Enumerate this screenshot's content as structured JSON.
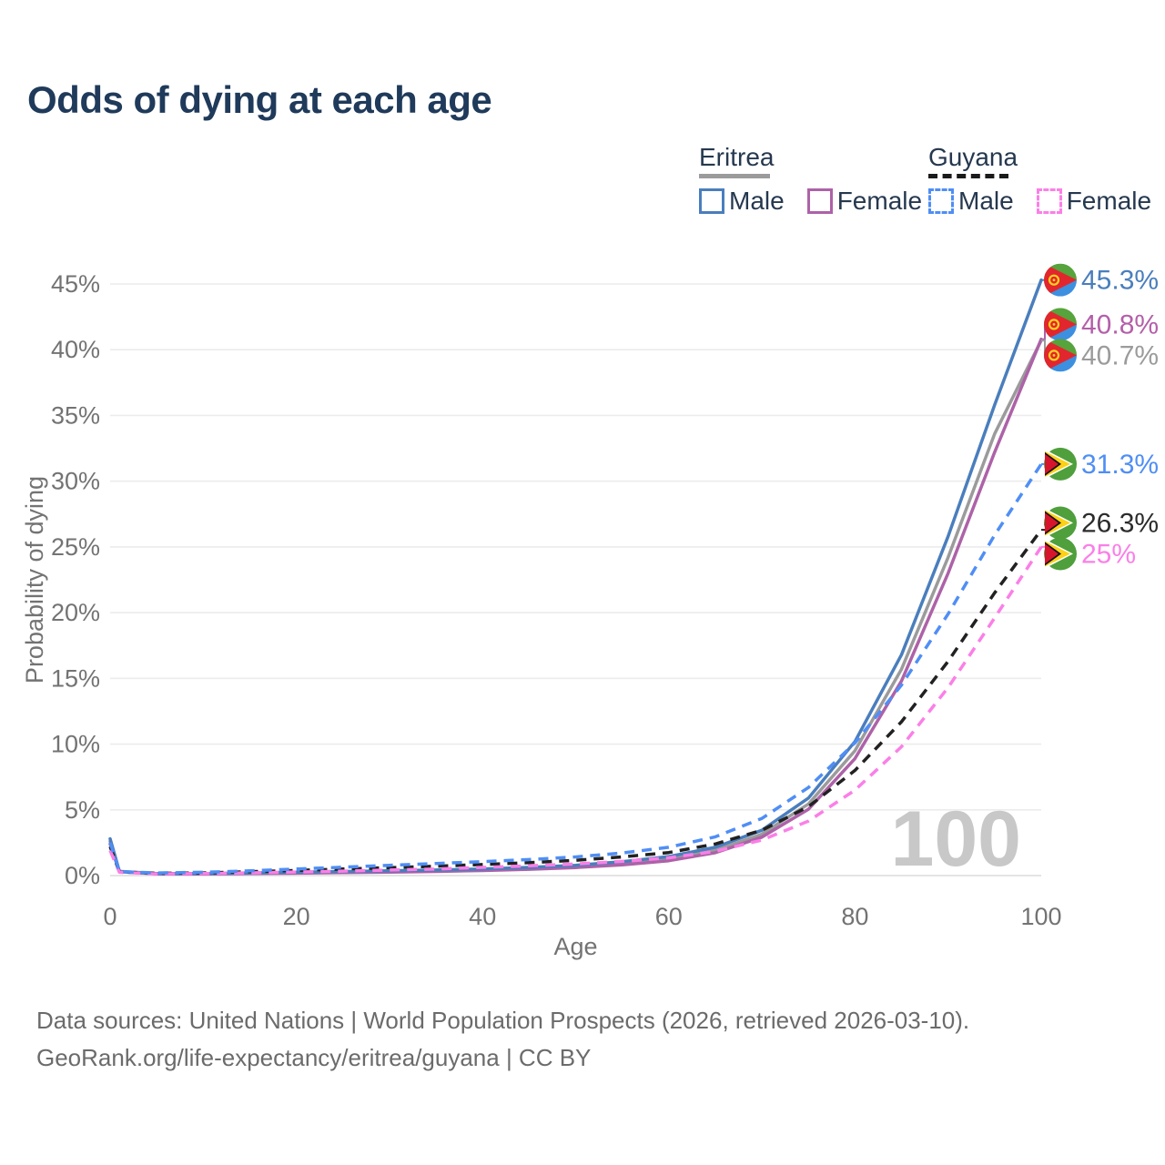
{
  "title": "Odds of dying at each age",
  "legend": {
    "groups": [
      {
        "label": "Eritrea",
        "underline_style": "solid",
        "underline_color": "#9b9b9b",
        "underline_width": 78,
        "items": [
          {
            "label": "Male",
            "color": "#4a7ebd",
            "dashed": false
          },
          {
            "label": "Female",
            "color": "#ad62a8",
            "dashed": false
          }
        ]
      },
      {
        "label": "Guyana",
        "underline_style": "dashed",
        "underline_color": "#1a1a1a",
        "underline_width": 88,
        "items": [
          {
            "label": "Male",
            "color": "#4f8ef5",
            "dashed": true
          },
          {
            "label": "Female",
            "color": "#fb7fe7",
            "dashed": true
          }
        ]
      }
    ]
  },
  "chart_data": {
    "type": "line",
    "title": "Odds of dying at each age",
    "xlabel": "Age",
    "ylabel": "Probability of dying",
    "xlim": [
      0,
      100
    ],
    "ylim_pct": [
      0,
      45
    ],
    "grid": true,
    "x_ticks": [
      0,
      20,
      40,
      60,
      80,
      100
    ],
    "y_ticks_pct": [
      0,
      5,
      10,
      15,
      20,
      25,
      30,
      35,
      40,
      45
    ],
    "y_tick_labels": [
      "0%",
      "5%",
      "10%",
      "15%",
      "20%",
      "25%",
      "30%",
      "35%",
      "40%",
      "45%"
    ],
    "hover_age_watermark": "100",
    "ages": [
      0,
      1,
      5,
      10,
      15,
      20,
      25,
      30,
      35,
      40,
      45,
      50,
      55,
      60,
      65,
      70,
      75,
      80,
      85,
      90,
      95,
      100
    ],
    "series": [
      {
        "id": "eritrea-male",
        "country": "Eritrea",
        "sex": "Male",
        "color": "#4a7ebd",
        "label_color": "#4a7ebd",
        "dashed": false,
        "flag": "eritrea-flag-icon",
        "end_label": "45.3%",
        "end_value_pct": 45.3,
        "values_pct": [
          2.8,
          0.32,
          0.16,
          0.15,
          0.2,
          0.26,
          0.31,
          0.36,
          0.42,
          0.5,
          0.62,
          0.78,
          1.05,
          1.45,
          2.15,
          3.45,
          5.9,
          10.2,
          16.8,
          25.8,
          35.8,
          45.3
        ]
      },
      {
        "id": "eritrea-female",
        "country": "Eritrea",
        "sex": "Female",
        "color": "#ad62a8",
        "label_color": "#b45fa9",
        "dashed": false,
        "flag": "eritrea-flag-icon",
        "end_label": "40.8%",
        "end_value_pct": 40.8,
        "values_pct": [
          2.4,
          0.29,
          0.13,
          0.12,
          0.15,
          0.18,
          0.22,
          0.26,
          0.31,
          0.38,
          0.48,
          0.61,
          0.82,
          1.13,
          1.74,
          2.92,
          5.05,
          8.9,
          14.8,
          23.0,
          32.2,
          40.8
        ]
      },
      {
        "id": "eritrea-total",
        "country": "Eritrea",
        "sex": "Both",
        "color": "#9b9b9b",
        "label_color": "#9b9b9b",
        "dashed": false,
        "flag": "eritrea-flag-icon",
        "end_label": "40.7%",
        "end_value_pct": 40.7,
        "values_pct": [
          2.6,
          0.3,
          0.14,
          0.13,
          0.17,
          0.22,
          0.26,
          0.31,
          0.36,
          0.44,
          0.55,
          0.69,
          0.93,
          1.28,
          1.92,
          3.15,
          5.45,
          9.5,
          15.7,
          24.2,
          33.6,
          40.7
        ]
      },
      {
        "id": "guyana-male",
        "country": "Guyana",
        "sex": "Male",
        "color": "#4f8ef5",
        "label_color": "#4f8ef5",
        "dashed": true,
        "flag": "guyana-flag-icon",
        "end_label": "31.3%",
        "end_value_pct": 31.3,
        "values_pct": [
          2.5,
          0.3,
          0.2,
          0.25,
          0.36,
          0.5,
          0.64,
          0.78,
          0.92,
          1.06,
          1.22,
          1.42,
          1.72,
          2.15,
          2.95,
          4.35,
          6.7,
          10.1,
          14.5,
          19.9,
          25.9,
          31.3
        ]
      },
      {
        "id": "guyana-total",
        "country": "Guyana",
        "sex": "Both",
        "color": "#212121",
        "label_color": "#2b2b2b",
        "dashed": true,
        "flag": "guyana-flag-icon",
        "end_label": "26.3%",
        "end_value_pct": 26.3,
        "values_pct": [
          2.2,
          0.28,
          0.17,
          0.2,
          0.29,
          0.39,
          0.5,
          0.6,
          0.71,
          0.84,
          0.98,
          1.16,
          1.42,
          1.75,
          2.4,
          3.45,
          5.25,
          8.0,
          11.7,
          16.3,
          21.5,
          26.3
        ]
      },
      {
        "id": "guyana-female",
        "country": "Guyana",
        "sex": "Female",
        "color": "#fb7fe7",
        "label_color": "#fb7fe7",
        "dashed": true,
        "flag": "guyana-flag-icon",
        "end_label": "25%",
        "end_value_pct": 25.0,
        "values_pct": [
          1.9,
          0.25,
          0.13,
          0.15,
          0.21,
          0.27,
          0.34,
          0.42,
          0.5,
          0.62,
          0.74,
          0.88,
          1.08,
          1.35,
          1.85,
          2.7,
          4.15,
          6.5,
          9.8,
          14.3,
          19.6,
          25.0
        ]
      }
    ]
  },
  "footer": {
    "line1": "Data sources: United Nations | World Population Prospects (2026, retrieved 2026-03-10).",
    "line2": "GeoRank.org/life-expectancy/eritrea/guyana | CC BY"
  }
}
